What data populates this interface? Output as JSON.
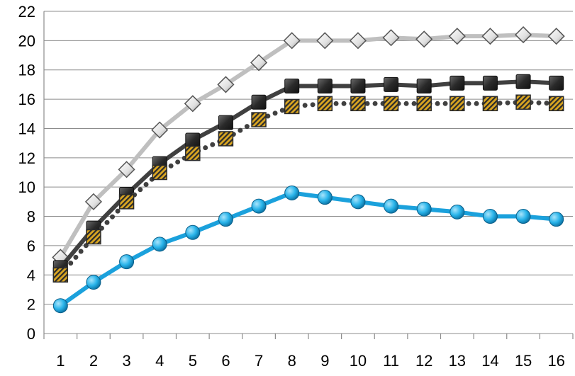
{
  "chart_data": {
    "type": "line",
    "title": "",
    "xlabel": "",
    "ylabel": "",
    "x": [
      1,
      2,
      3,
      4,
      5,
      6,
      7,
      8,
      9,
      10,
      11,
      12,
      13,
      14,
      15,
      16
    ],
    "ylim": [
      0,
      22
    ],
    "yticks": [
      0,
      2,
      4,
      6,
      8,
      10,
      12,
      14,
      16,
      18,
      20,
      22
    ],
    "grid": "horizontal",
    "legend": "none",
    "series": [
      {
        "key": "light-gray-diamond",
        "color": "#bfbfbf",
        "marker": "diamond",
        "style": "solid",
        "values": [
          5.2,
          9.0,
          11.2,
          13.9,
          15.7,
          17.0,
          18.5,
          20.0,
          20.0,
          20.0,
          20.2,
          20.1,
          20.3,
          20.3,
          20.4,
          20.3
        ]
      },
      {
        "key": "dark-gray-square",
        "color": "#404040",
        "marker": "square",
        "style": "solid",
        "values": [
          4.5,
          7.2,
          9.5,
          11.6,
          13.2,
          14.4,
          15.8,
          16.9,
          16.9,
          16.9,
          17.0,
          16.9,
          17.1,
          17.1,
          17.2,
          17.1
        ]
      },
      {
        "key": "gold-hatched-square",
        "color": "#404040",
        "marker": "hatched-square",
        "style": "dotted",
        "values": [
          4.0,
          6.6,
          9.0,
          11.0,
          12.3,
          13.3,
          14.6,
          15.5,
          15.7,
          15.7,
          15.7,
          15.7,
          15.7,
          15.7,
          15.8,
          15.7
        ]
      },
      {
        "key": "blue-circle",
        "color": "#1ba1dc",
        "marker": "circle",
        "style": "solid",
        "values": [
          1.9,
          3.5,
          4.9,
          6.1,
          6.9,
          7.8,
          8.7,
          9.6,
          9.3,
          9.0,
          8.7,
          8.5,
          8.3,
          8.0,
          8.0,
          7.8
        ]
      }
    ]
  }
}
